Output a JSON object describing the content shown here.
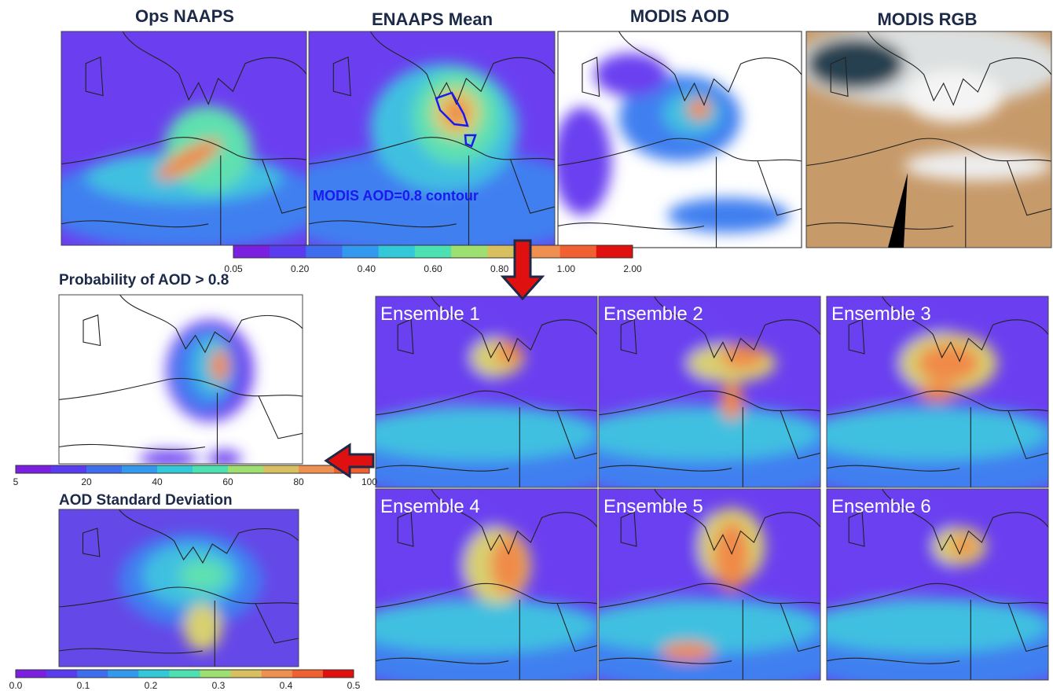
{
  "top_panels": [
    {
      "title": "Ops NAAPS"
    },
    {
      "title": "ENAAPS Mean"
    },
    {
      "title": "MODIS AOD"
    },
    {
      "title": "MODIS RGB"
    }
  ],
  "annotation": "MODIS AOD=0.8 contour",
  "aod_colorbar": {
    "labels": [
      "0.05",
      "0.20",
      "0.40",
      "0.60",
      "0.80",
      "1.00",
      "2.00"
    ]
  },
  "probability": {
    "title": "Probability of AOD > 0.8",
    "labels": [
      "5",
      "20",
      "40",
      "60",
      "80",
      "100"
    ]
  },
  "std_dev": {
    "title": "AOD Standard Deviation",
    "labels": [
      "0.0",
      "0.1",
      "0.2",
      "0.3",
      "0.4",
      "0.5"
    ]
  },
  "ensembles": [
    {
      "label": "Ensemble 1"
    },
    {
      "label": "Ensemble 2"
    },
    {
      "label": "Ensemble 3"
    },
    {
      "label": "Ensemble 4"
    },
    {
      "label": "Ensemble 5"
    },
    {
      "label": "Ensemble 6"
    }
  ]
}
